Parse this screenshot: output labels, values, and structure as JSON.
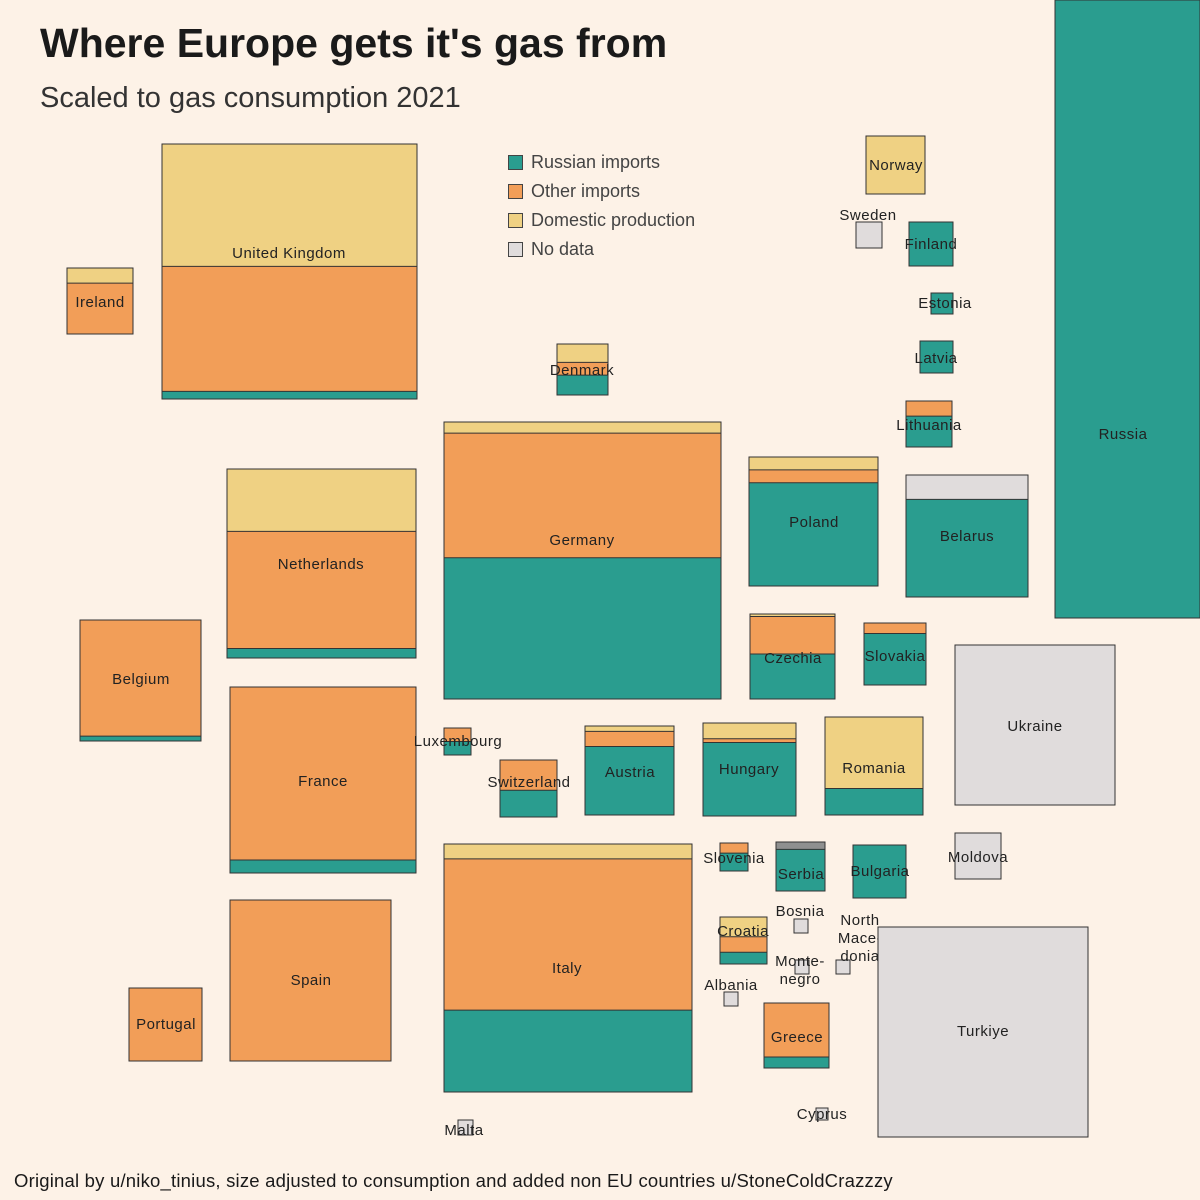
{
  "header": {
    "title": "Where Europe gets it's gas from",
    "subtitle": "Scaled to gas consumption 2021"
  },
  "footer": {
    "credit": "Original by u/niko_tinius, size adjusted to consumption and added non EU countries u/StoneColdCrazzzy"
  },
  "legend": {
    "position": "top-center",
    "items": [
      {
        "key": "russian",
        "label": "Russian imports",
        "color": "#2a9d8f"
      },
      {
        "key": "other",
        "label": "Other imports",
        "color": "#f29e58"
      },
      {
        "key": "domestic",
        "label": "Domestic production",
        "color": "#efd183"
      },
      {
        "key": "nodata",
        "label": "No data",
        "color": "#e0dcdc"
      }
    ]
  },
  "chart_data": {
    "type": "proportional-area tile map",
    "title": "Where Europe gets it's gas from",
    "subtitle": "Scaled to gas consumption 2021",
    "size_encoding": "square area proportional to 2021 gas consumption",
    "series_order_top_to_bottom": [
      "domestic",
      "other",
      "russian"
    ],
    "countries": [
      {
        "name": "United Kingdom",
        "size": 66,
        "shares": {
          "domestic": 48,
          "other": 49,
          "russian": 3
        }
      },
      {
        "name": "Ireland",
        "size": 4.4,
        "shares": {
          "domestic": 23,
          "other": 77,
          "russian": 0
        }
      },
      {
        "name": "Norway",
        "size": 3.5,
        "shares": {
          "domestic": 100,
          "other": 0,
          "russian": 0
        }
      },
      {
        "name": "Sweden",
        "size": 0.7,
        "shares": {
          "nodata": 100
        }
      },
      {
        "name": "Finland",
        "size": 1.9,
        "shares": {
          "domestic": 0,
          "other": 0,
          "russian": 100
        }
      },
      {
        "name": "Estonia",
        "size": 0.5,
        "shares": {
          "domestic": 0,
          "other": 0,
          "russian": 100
        }
      },
      {
        "name": "Latvia",
        "size": 1.1,
        "shares": {
          "domestic": 0,
          "other": 0,
          "russian": 100
        }
      },
      {
        "name": "Lithuania",
        "size": 2.0,
        "shares": {
          "domestic": 0,
          "other": 33,
          "russian": 67
        }
      },
      {
        "name": "Russia",
        "size": 477,
        "shares": {
          "domestic": 0,
          "other": 0,
          "russian": 100
        }
      },
      {
        "name": "Denmark",
        "size": 2.6,
        "shares": {
          "domestic": 36,
          "other": 25,
          "russian": 39
        }
      },
      {
        "name": "Germany",
        "size": 78,
        "shares": {
          "domestic": 4,
          "other": 45,
          "russian": 51
        }
      },
      {
        "name": "Poland",
        "size": 17,
        "shares": {
          "domestic": 10,
          "other": 10,
          "russian": 80
        }
      },
      {
        "name": "Belarus",
        "size": 15,
        "shares": {
          "nodata": 20,
          "russian": 80
        }
      },
      {
        "name": "Netherlands",
        "size": 36,
        "shares": {
          "domestic": 33,
          "other": 62,
          "russian": 5
        }
      },
      {
        "name": "Belgium",
        "size": 14,
        "shares": {
          "domestic": 0,
          "other": 96,
          "russian": 4
        }
      },
      {
        "name": "France",
        "size": 35,
        "shares": {
          "domestic": 0,
          "other": 93,
          "russian": 7
        }
      },
      {
        "name": "Luxembourg",
        "size": 0.7,
        "shares": {
          "domestic": 0,
          "other": 50,
          "russian": 50
        }
      },
      {
        "name": "Switzerland",
        "size": 3.3,
        "shares": {
          "domestic": 0,
          "other": 53,
          "russian": 47
        }
      },
      {
        "name": "Austria",
        "size": 8.8,
        "shares": {
          "domestic": 6,
          "other": 17,
          "russian": 77
        }
      },
      {
        "name": "Hungary",
        "size": 9.7,
        "shares": {
          "domestic": 17,
          "other": 4,
          "russian": 79
        }
      },
      {
        "name": "Romania",
        "size": 9.7,
        "shares": {
          "domestic": 73,
          "other": 0,
          "russian": 27
        }
      },
      {
        "name": "Czechia",
        "size": 7.3,
        "shares": {
          "domestic": 3,
          "other": 44,
          "russian": 53
        }
      },
      {
        "name": "Slovakia",
        "size": 4.0,
        "shares": {
          "domestic": 0,
          "other": 17,
          "russian": 83
        }
      },
      {
        "name": "Ukraine",
        "size": 26,
        "shares": {
          "nodata": 100
        }
      },
      {
        "name": "Italy",
        "size": 63,
        "shares": {
          "domestic": 6,
          "other": 61,
          "russian": 33
        }
      },
      {
        "name": "Slovenia",
        "size": 0.8,
        "shares": {
          "domestic": 0,
          "other": 36,
          "russian": 64
        }
      },
      {
        "name": "Serbia",
        "size": 2.9,
        "shares": {
          "nodata": 15,
          "russian": 85
        }
      },
      {
        "name": "Bulgaria",
        "size": 2.9,
        "shares": {
          "domestic": 0,
          "other": 0,
          "russian": 100
        }
      },
      {
        "name": "Moldova",
        "size": 2.2,
        "shares": {
          "nodata": 100
        }
      },
      {
        "name": "Bosnia",
        "size": 0.25,
        "shares": {
          "nodata": 100
        }
      },
      {
        "name": "Croatia",
        "size": 2.5,
        "shares": {
          "domestic": 42,
          "other": 33,
          "russian": 25
        }
      },
      {
        "name": "North Mace-donia",
        "size": 0.25,
        "shares": {
          "nodata": 100
        }
      },
      {
        "name": "Monte-negro",
        "size": 0.2,
        "shares": {
          "nodata": 100
        }
      },
      {
        "name": "Albania",
        "size": 0.2,
        "shares": {
          "nodata": 100
        }
      },
      {
        "name": "Greece",
        "size": 4.4,
        "shares": {
          "domestic": 0,
          "other": 83,
          "russian": 17
        }
      },
      {
        "name": "Turkiye",
        "size": 60,
        "shares": {
          "nodata": 100
        }
      },
      {
        "name": "Cyprus",
        "size": 0.1,
        "shares": {
          "nodata": 100
        }
      },
      {
        "name": "Malta",
        "size": 0.3,
        "shares": {
          "nodata": 100
        }
      },
      {
        "name": "Spain",
        "size": 32,
        "shares": {
          "domestic": 0,
          "other": 100,
          "russian": 0
        }
      },
      {
        "name": "Portugal",
        "size": 6.2,
        "shares": {
          "domestic": 0,
          "other": 100,
          "russian": 0
        }
      }
    ]
  }
}
